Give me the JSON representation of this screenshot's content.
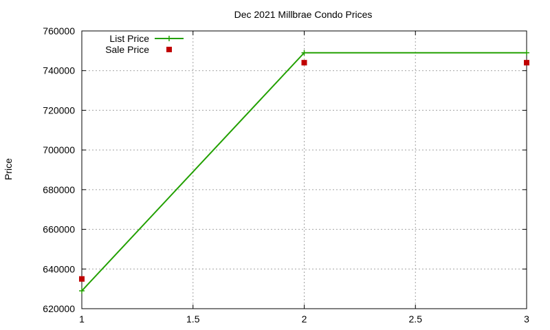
{
  "chart_data": {
    "type": "line",
    "title": "Dec 2021 Millbrae Condo Prices",
    "xlabel": "",
    "ylabel": "Price",
    "xlim": [
      1,
      3
    ],
    "ylim": [
      620000,
      760000
    ],
    "x_ticks": [
      1,
      1.5,
      2,
      2.5,
      3
    ],
    "x_tick_labels": [
      "1",
      "1.5",
      "2",
      "2.5",
      "3"
    ],
    "y_ticks": [
      620000,
      640000,
      660000,
      680000,
      700000,
      720000,
      740000,
      760000
    ],
    "y_tick_labels": [
      "620000",
      "640000",
      "660000",
      "680000",
      "700000",
      "720000",
      "740000",
      "760000"
    ],
    "grid": true,
    "legend_position": "top-left",
    "series": [
      {
        "name": "List Price",
        "style": "linespoints",
        "marker": "plus",
        "color": "#22a000",
        "x": [
          1,
          2,
          3
        ],
        "values": [
          629000,
          749000,
          749000
        ]
      },
      {
        "name": "Sale Price",
        "style": "points",
        "marker": "square",
        "color": "#c00000",
        "x": [
          1,
          2,
          3
        ],
        "values": [
          635000,
          744000,
          744000
        ]
      }
    ]
  }
}
